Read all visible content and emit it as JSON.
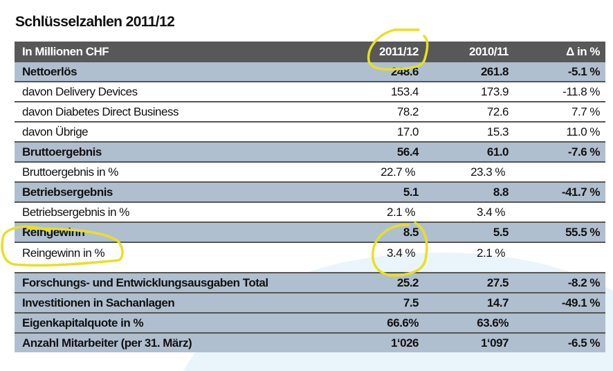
{
  "title": "Schlüsselzahlen 2011/12",
  "header": {
    "label": "In Millionen CHF",
    "col1": "2011/12",
    "col2": "2010/11",
    "col3": "Δ in %"
  },
  "rows": [
    {
      "label": "Nettoerlös",
      "v1": "248.6",
      "v2": "261.8",
      "v3": "-5.1 %",
      "bold": true
    },
    {
      "label": "davon Delivery Devices",
      "v1": "153.4",
      "v2": "173.9",
      "v3": "-11.8 %",
      "bold": false
    },
    {
      "label": "davon Diabetes Direct Business",
      "v1": "78.2",
      "v2": "72.6",
      "v3": "7.7 %",
      "bold": false
    },
    {
      "label": "davon Übrige",
      "v1": "17.0",
      "v2": "15.3",
      "v3": "11.0 %",
      "bold": false
    },
    {
      "label": "Bruttoergebnis",
      "v1": "56.4",
      "v2": "61.0",
      "v3": "-7.6 %",
      "bold": true
    },
    {
      "label": "Bruttoergebnis in %",
      "v1": "22.7 %",
      "v2": "23.3 %",
      "v3": "",
      "bold": false
    },
    {
      "label": "Betriebsergebnis",
      "v1": "5.1",
      "v2": "8.8",
      "v3": "-41.7 %",
      "bold": true
    },
    {
      "label": "Betriebsergebnis in %",
      "v1": "2.1 %",
      "v2": "3.4 %",
      "v3": "",
      "bold": false
    },
    {
      "label": "Reingewinn",
      "v1": "8.5",
      "v2": "5.5",
      "v3": "55.5 %",
      "bold": true
    },
    {
      "label": "Reingewinn in %",
      "v1": "3.4 %",
      "v2": "2.1 %",
      "v3": "",
      "bold": false
    },
    {
      "label": "Forschungs- und Entwicklungsausgaben Total",
      "v1": "25.2",
      "v2": "27.5",
      "v3": "-8.2 %",
      "bold": true
    },
    {
      "label": "Investitionen in Sachanlagen",
      "v1": "7.5",
      "v2": "14.7",
      "v3": "-49.1 %",
      "bold": true
    },
    {
      "label": "Eigenkapitalquote in %",
      "v1": "66.6%",
      "v2": "63.6%",
      "v3": "",
      "bold": true
    },
    {
      "label": "Anzahl Mitarbeiter (per  31. März)",
      "v1": "1‘026",
      "v2": "1‘097",
      "v3": "-6.5 %",
      "bold": true
    }
  ],
  "colors": {
    "header_bg": "#585858",
    "row_highlight": "#b0bfcf",
    "annotation": "#e8e020",
    "background_arc": "#eaf5fb"
  }
}
